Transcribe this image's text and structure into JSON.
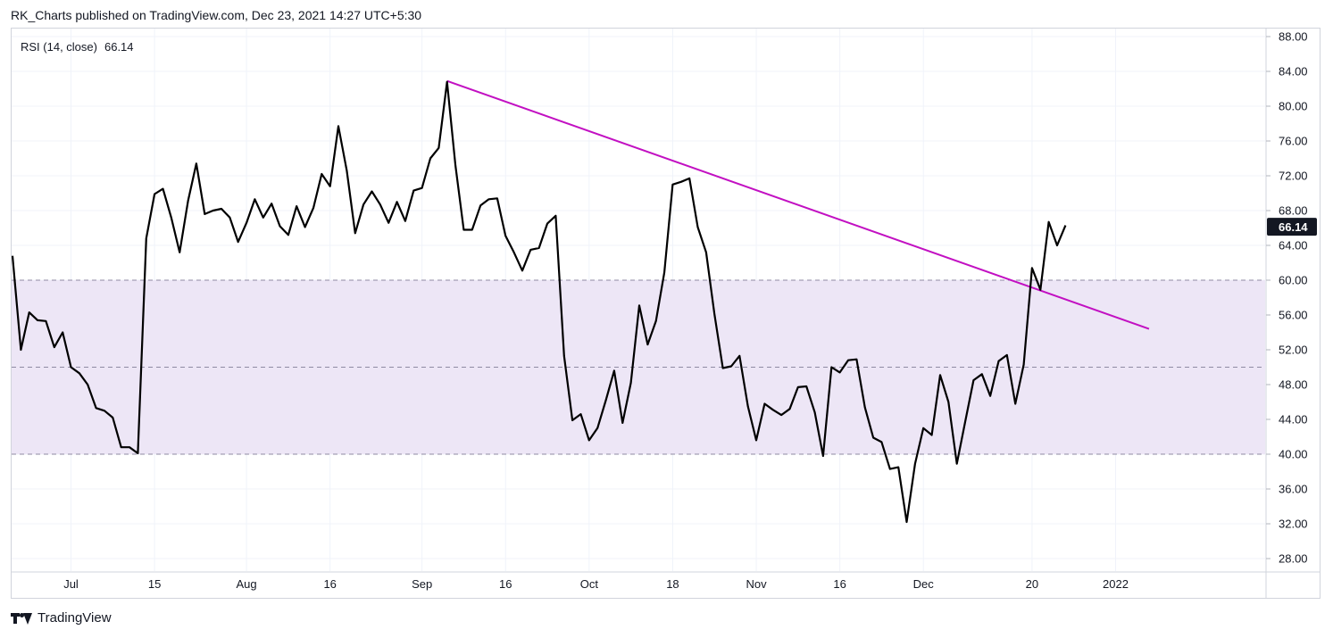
{
  "header": {
    "text": "RK_Charts published on TradingView.com, Dec 23, 2021 14:27 UTC+5:30"
  },
  "legend": {
    "label": "RSI (14, close)",
    "value": "66.14"
  },
  "footer": {
    "brand": "TradingView",
    "logo_icon": "tradingview-logo-icon"
  },
  "chart_data": {
    "type": "line",
    "ylim": [
      27,
      89
    ],
    "y_ticks": [
      "88.00",
      "84.00",
      "80.00",
      "76.00",
      "72.00",
      "68.00",
      "64.00",
      "60.00",
      "56.00",
      "52.00",
      "48.00",
      "44.00",
      "40.00",
      "36.00",
      "32.00",
      "28.00"
    ],
    "x_ticks": [
      {
        "label": "Jul",
        "bar": 7
      },
      {
        "label": "15",
        "bar": 17
      },
      {
        "label": "Aug",
        "bar": 28
      },
      {
        "label": "16",
        "bar": 38
      },
      {
        "label": "Sep",
        "bar": 49
      },
      {
        "label": "16",
        "bar": 59
      },
      {
        "label": "Oct",
        "bar": 69
      },
      {
        "label": "18",
        "bar": 79
      },
      {
        "label": "Nov",
        "bar": 89
      },
      {
        "label": "16",
        "bar": 99
      },
      {
        "label": "Dec",
        "bar": 109
      },
      {
        "label": "20",
        "bar": 122
      },
      {
        "label": "2022",
        "bar": 132
      }
    ],
    "bar_count": 137,
    "band": {
      "lower": 40,
      "upper": 60,
      "middle": 50,
      "fill": "#ede6f6"
    },
    "line_color": "#000000",
    "trend_color": "#c210c2",
    "current_value_label": "66.14",
    "series": [
      {
        "values": [
          62.8,
          52,
          56.3,
          55.4,
          55.3,
          52.3,
          54,
          50,
          49.3,
          48,
          45.3,
          45,
          44.2,
          40.8,
          40.8,
          40.1,
          64.8,
          69.9,
          70.5,
          67.2,
          63.2,
          69.1,
          73.4,
          67.6,
          68,
          68.2,
          67.2,
          64.4,
          66.6,
          69.3,
          67.2,
          68.8,
          66.2,
          65.2,
          68.5,
          66.1,
          68.3,
          72.2,
          70.8,
          77.7,
          72.6,
          65.4,
          68.7,
          70.2,
          68.7,
          66.6,
          69,
          66.8,
          70.3,
          70.6,
          74,
          75.2,
          82.8,
          73.2,
          65.8,
          65.8,
          68.6,
          69.3,
          69.4,
          65.1,
          63.2,
          61.1,
          63.5,
          63.7,
          66.5,
          67.4,
          51.3,
          43.9,
          44.6,
          41.6,
          43,
          46.2,
          49.6,
          43.6,
          48.2,
          57.1,
          52.6,
          55.3,
          60.9,
          71,
          71.3,
          71.7,
          66.1,
          63.2,
          56.1,
          49.9,
          50.1,
          51.3,
          45.5,
          41.6,
          45.8,
          45.1,
          44.5,
          45.2,
          47.7,
          47.8,
          44.8,
          39.8,
          50,
          49.4,
          50.8,
          50.9,
          45.4,
          41.9,
          41.4,
          38.3,
          38.5,
          32.2,
          38.9,
          43,
          42.2,
          49.1,
          46,
          38.9,
          43.7,
          48.5,
          49.2,
          46.7,
          50.7,
          51.4,
          45.8,
          50.3,
          61.4,
          58.9,
          66.7,
          64,
          66.3
        ]
      },
      {
        "name": "",
        "values": [
          [
            52,
            82.9
          ],
          [
            136,
            54.4
          ]
        ]
      }
    ]
  }
}
